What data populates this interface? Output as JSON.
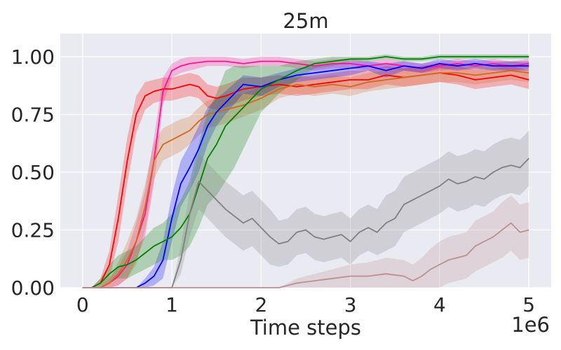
{
  "chart_data": {
    "type": "line",
    "title": "25m",
    "xlabel": "Time steps",
    "ylabel": "",
    "x_offset_text": "1e6",
    "xlim": [
      -0.25,
      5.25
    ],
    "ylim": [
      0,
      1.1
    ],
    "xticks": [
      0,
      1,
      2,
      3,
      4,
      5
    ],
    "xtick_labels": [
      "0",
      "1",
      "2",
      "3",
      "4",
      "5"
    ],
    "yticks": [
      0,
      0.25,
      0.5,
      0.75,
      1.0
    ],
    "ytick_labels": [
      "0.00",
      "0.25",
      "0.50",
      "0.75",
      "1.00"
    ],
    "grid": true,
    "background": "#eaeaf2",
    "series": [
      {
        "color": "#ff0000",
        "x": [
          0,
          0.1,
          0.2,
          0.3,
          0.4,
          0.5,
          0.6,
          0.7,
          0.8,
          0.9,
          1.0,
          1.1,
          1.2,
          1.3,
          1.4,
          1.5,
          1.6,
          1.8,
          2.0,
          2.2,
          2.4,
          2.6,
          2.8,
          3.0,
          3.2,
          3.4,
          3.6,
          3.8,
          4.0,
          4.2,
          4.4,
          4.6,
          4.8,
          5.0
        ],
        "y": [
          0.0,
          0.0,
          0.02,
          0.1,
          0.3,
          0.55,
          0.75,
          0.83,
          0.85,
          0.86,
          0.86,
          0.87,
          0.88,
          0.87,
          0.83,
          0.82,
          0.83,
          0.86,
          0.87,
          0.88,
          0.87,
          0.88,
          0.89,
          0.9,
          0.9,
          0.92,
          0.91,
          0.92,
          0.93,
          0.92,
          0.9,
          0.91,
          0.92,
          0.9
        ],
        "band": [
          0.0,
          0.0,
          0.02,
          0.06,
          0.1,
          0.1,
          0.08,
          0.06,
          0.05,
          0.05,
          0.05,
          0.05,
          0.05,
          0.05,
          0.05,
          0.05,
          0.05,
          0.05,
          0.04,
          0.04,
          0.04,
          0.04,
          0.04,
          0.04,
          0.04,
          0.04,
          0.04,
          0.04,
          0.04,
          0.04,
          0.04,
          0.04,
          0.04,
          0.04
        ]
      },
      {
        "color": "#ff1493",
        "x": [
          0,
          0.1,
          0.2,
          0.3,
          0.4,
          0.5,
          0.6,
          0.7,
          0.8,
          0.9,
          1.0,
          1.1,
          1.2,
          1.4,
          1.6,
          1.8,
          2.0,
          2.2,
          2.4,
          2.6,
          2.8,
          3.0,
          3.2,
          3.4,
          3.6,
          3.8,
          4.0,
          4.2,
          4.4,
          4.6,
          4.8,
          5.0
        ],
        "y": [
          0.0,
          0.0,
          0.0,
          0.02,
          0.05,
          0.1,
          0.2,
          0.32,
          0.55,
          0.85,
          0.94,
          0.96,
          0.97,
          0.98,
          0.98,
          0.97,
          0.98,
          0.98,
          0.97,
          0.96,
          0.97,
          0.97,
          0.96,
          0.97,
          0.96,
          0.95,
          0.96,
          0.97,
          0.96,
          0.97,
          0.96,
          0.97
        ],
        "band": [
          0.0,
          0.0,
          0.0,
          0.02,
          0.04,
          0.06,
          0.08,
          0.1,
          0.1,
          0.06,
          0.03,
          0.03,
          0.03,
          0.02,
          0.02,
          0.02,
          0.02,
          0.02,
          0.02,
          0.02,
          0.02,
          0.02,
          0.02,
          0.02,
          0.02,
          0.02,
          0.02,
          0.02,
          0.02,
          0.02,
          0.02,
          0.02
        ]
      },
      {
        "color": "#d2691e",
        "x": [
          0,
          0.1,
          0.2,
          0.3,
          0.4,
          0.5,
          0.6,
          0.7,
          0.8,
          0.9,
          1.0,
          1.1,
          1.2,
          1.3,
          1.4,
          1.5,
          1.6,
          1.8,
          2.0,
          2.2,
          2.4,
          2.6,
          2.8,
          3.0,
          3.2,
          3.4,
          3.6,
          3.8,
          4.0,
          4.2,
          4.4,
          4.6,
          4.8,
          5.0
        ],
        "y": [
          0.0,
          0.0,
          0.0,
          0.02,
          0.06,
          0.12,
          0.2,
          0.35,
          0.55,
          0.62,
          0.64,
          0.66,
          0.68,
          0.72,
          0.75,
          0.76,
          0.77,
          0.79,
          0.82,
          0.86,
          0.88,
          0.87,
          0.88,
          0.87,
          0.89,
          0.9,
          0.91,
          0.92,
          0.93,
          0.93,
          0.92,
          0.93,
          0.94,
          0.93
        ],
        "band": [
          0.0,
          0.0,
          0.0,
          0.02,
          0.05,
          0.08,
          0.1,
          0.1,
          0.08,
          0.07,
          0.07,
          0.07,
          0.06,
          0.06,
          0.06,
          0.06,
          0.06,
          0.05,
          0.05,
          0.04,
          0.04,
          0.04,
          0.04,
          0.04,
          0.04,
          0.04,
          0.04,
          0.04,
          0.04,
          0.04,
          0.04,
          0.04,
          0.04,
          0.04
        ]
      },
      {
        "color": "#0000ff",
        "x": [
          0,
          0.2,
          0.4,
          0.6,
          0.7,
          0.8,
          0.9,
          1.0,
          1.1,
          1.2,
          1.3,
          1.4,
          1.5,
          1.6,
          1.8,
          2.0,
          2.2,
          2.4,
          2.6,
          2.8,
          3.0,
          3.2,
          3.4,
          3.6,
          3.8,
          4.0,
          4.2,
          4.4,
          4.6,
          4.8,
          5.0
        ],
        "y": [
          0.0,
          0.0,
          0.0,
          0.0,
          0.02,
          0.05,
          0.12,
          0.3,
          0.45,
          0.52,
          0.6,
          0.7,
          0.76,
          0.8,
          0.88,
          0.87,
          0.9,
          0.92,
          0.93,
          0.94,
          0.95,
          0.96,
          0.94,
          0.96,
          0.95,
          0.97,
          0.96,
          0.97,
          0.96,
          0.96,
          0.96
        ],
        "band": [
          0.0,
          0.0,
          0.0,
          0.0,
          0.02,
          0.04,
          0.08,
          0.1,
          0.1,
          0.1,
          0.1,
          0.08,
          0.06,
          0.05,
          0.04,
          0.04,
          0.03,
          0.03,
          0.03,
          0.03,
          0.03,
          0.02,
          0.03,
          0.02,
          0.02,
          0.02,
          0.02,
          0.02,
          0.02,
          0.02,
          0.02
        ]
      },
      {
        "color": "#008000",
        "x": [
          0,
          0.1,
          0.2,
          0.3,
          0.4,
          0.5,
          0.6,
          0.7,
          0.8,
          0.9,
          1.0,
          1.1,
          1.2,
          1.3,
          1.4,
          1.5,
          1.6,
          1.7,
          1.8,
          1.9,
          2.0,
          2.2,
          2.4,
          2.6,
          2.8,
          3.0,
          3.2,
          3.4,
          3.6,
          3.8,
          4.0,
          4.2,
          4.4,
          4.6,
          4.8,
          5.0
        ],
        "y": [
          0.0,
          0.0,
          0.02,
          0.06,
          0.09,
          0.1,
          0.12,
          0.15,
          0.18,
          0.2,
          0.22,
          0.26,
          0.32,
          0.44,
          0.56,
          0.62,
          0.7,
          0.74,
          0.78,
          0.82,
          0.86,
          0.9,
          0.94,
          0.97,
          0.98,
          0.99,
          0.99,
          1.0,
          0.99,
          0.99,
          1.0,
          1.0,
          1.0,
          1.0,
          1.0,
          1.0
        ],
        "band": [
          0.0,
          0.0,
          0.02,
          0.04,
          0.05,
          0.06,
          0.06,
          0.07,
          0.08,
          0.08,
          0.1,
          0.12,
          0.14,
          0.18,
          0.2,
          0.22,
          0.24,
          0.22,
          0.18,
          0.14,
          0.1,
          0.06,
          0.04,
          0.02,
          0.02,
          0.01,
          0.01,
          0.01,
          0.01,
          0.01,
          0.01,
          0.01,
          0.01,
          0.01,
          0.01,
          0.01
        ]
      },
      {
        "color": "#808080",
        "x": [
          0,
          0.4,
          0.8,
          1.0,
          1.1,
          1.2,
          1.3,
          1.4,
          1.5,
          1.6,
          1.7,
          1.8,
          1.9,
          2.0,
          2.1,
          2.2,
          2.3,
          2.4,
          2.5,
          2.6,
          2.7,
          2.8,
          2.9,
          3.0,
          3.1,
          3.2,
          3.3,
          3.4,
          3.5,
          3.6,
          3.7,
          3.8,
          3.9,
          4.0,
          4.1,
          4.2,
          4.3,
          4.4,
          4.5,
          4.6,
          4.7,
          4.8,
          4.9,
          5.0
        ],
        "y": [
          0.0,
          0.0,
          0.0,
          0.0,
          0.12,
          0.32,
          0.46,
          0.42,
          0.38,
          0.34,
          0.31,
          0.28,
          0.3,
          0.26,
          0.22,
          0.19,
          0.2,
          0.24,
          0.25,
          0.22,
          0.21,
          0.22,
          0.23,
          0.2,
          0.24,
          0.26,
          0.24,
          0.28,
          0.3,
          0.36,
          0.38,
          0.4,
          0.42,
          0.44,
          0.47,
          0.45,
          0.46,
          0.48,
          0.47,
          0.5,
          0.52,
          0.53,
          0.52,
          0.56
        ],
        "band": [
          0.0,
          0.0,
          0.0,
          0.0,
          0.06,
          0.1,
          0.12,
          0.12,
          0.12,
          0.12,
          0.12,
          0.12,
          0.12,
          0.12,
          0.12,
          0.1,
          0.1,
          0.1,
          0.1,
          0.1,
          0.1,
          0.1,
          0.1,
          0.1,
          0.1,
          0.1,
          0.1,
          0.12,
          0.12,
          0.12,
          0.12,
          0.12,
          0.12,
          0.12,
          0.12,
          0.12,
          0.12,
          0.12,
          0.12,
          0.12,
          0.12,
          0.12,
          0.12,
          0.12
        ]
      },
      {
        "color": "#bc8f8f",
        "x": [
          0,
          0.5,
          1.0,
          1.5,
          2.0,
          2.2,
          2.4,
          2.6,
          2.8,
          3.0,
          3.2,
          3.4,
          3.6,
          3.7,
          3.8,
          3.9,
          4.0,
          4.1,
          4.2,
          4.3,
          4.4,
          4.5,
          4.6,
          4.7,
          4.8,
          4.9,
          5.0
        ],
        "y": [
          0.0,
          0.0,
          0.0,
          0.0,
          0.0,
          0.0,
          0.02,
          0.03,
          0.04,
          0.05,
          0.05,
          0.06,
          0.05,
          0.03,
          0.05,
          0.08,
          0.1,
          0.12,
          0.13,
          0.14,
          0.18,
          0.2,
          0.22,
          0.25,
          0.28,
          0.24,
          0.25
        ],
        "band": [
          0.0,
          0.0,
          0.0,
          0.0,
          0.0,
          0.0,
          0.02,
          0.03,
          0.04,
          0.05,
          0.06,
          0.07,
          0.07,
          0.07,
          0.08,
          0.09,
          0.1,
          0.1,
          0.1,
          0.1,
          0.11,
          0.11,
          0.11,
          0.12,
          0.12,
          0.12,
          0.12
        ]
      }
    ]
  }
}
